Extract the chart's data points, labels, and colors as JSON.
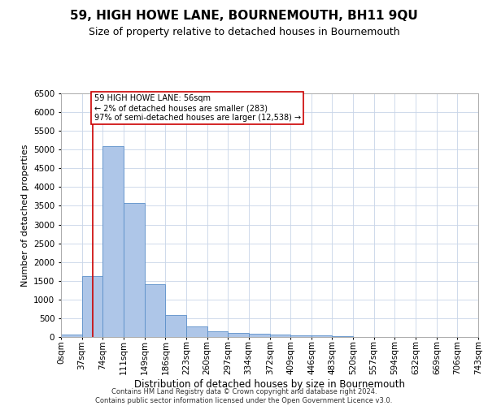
{
  "title": "59, HIGH HOWE LANE, BOURNEMOUTH, BH11 9QU",
  "subtitle": "Size of property relative to detached houses in Bournemouth",
  "xlabel": "Distribution of detached houses by size in Bournemouth",
  "ylabel": "Number of detached properties",
  "footer_line1": "Contains HM Land Registry data © Crown copyright and database right 2024.",
  "footer_line2": "Contains public sector information licensed under the Open Government Licence v3.0.",
  "annotation_title": "59 HIGH HOWE LANE: 56sqm",
  "annotation_line2": "← 2% of detached houses are smaller (283)",
  "annotation_line3": "97% of semi-detached houses are larger (12,538) →",
  "bar_color": "#aec6e8",
  "bar_edge_color": "#5b8fc9",
  "grid_color": "#c8d4e8",
  "annotation_box_color": "#ffffff",
  "annotation_box_edge": "#cc0000",
  "vline_color": "#cc0000",
  "property_size_sqm": 56,
  "bin_edges": [
    0,
    37,
    74,
    111,
    149,
    186,
    223,
    260,
    297,
    334,
    372,
    409,
    446,
    483,
    520,
    557,
    594,
    632,
    669,
    706,
    743
  ],
  "bin_labels": [
    "0sqm",
    "37sqm",
    "74sqm",
    "111sqm",
    "149sqm",
    "186sqm",
    "223sqm",
    "260sqm",
    "297sqm",
    "334sqm",
    "372sqm",
    "409sqm",
    "446sqm",
    "483sqm",
    "520sqm",
    "557sqm",
    "594sqm",
    "632sqm",
    "669sqm",
    "706sqm",
    "743sqm"
  ],
  "bar_heights": [
    60,
    1630,
    5090,
    3580,
    1400,
    590,
    290,
    145,
    110,
    80,
    60,
    50,
    50,
    20,
    10,
    10,
    5,
    5,
    5,
    5
  ],
  "ylim": [
    0,
    6500
  ],
  "yticks": [
    0,
    500,
    1000,
    1500,
    2000,
    2500,
    3000,
    3500,
    4000,
    4500,
    5000,
    5500,
    6000,
    6500
  ],
  "title_fontsize": 11,
  "subtitle_fontsize": 9,
  "ylabel_fontsize": 8,
  "xlabel_fontsize": 8.5,
  "tick_fontsize": 7.5,
  "footer_fontsize": 6
}
